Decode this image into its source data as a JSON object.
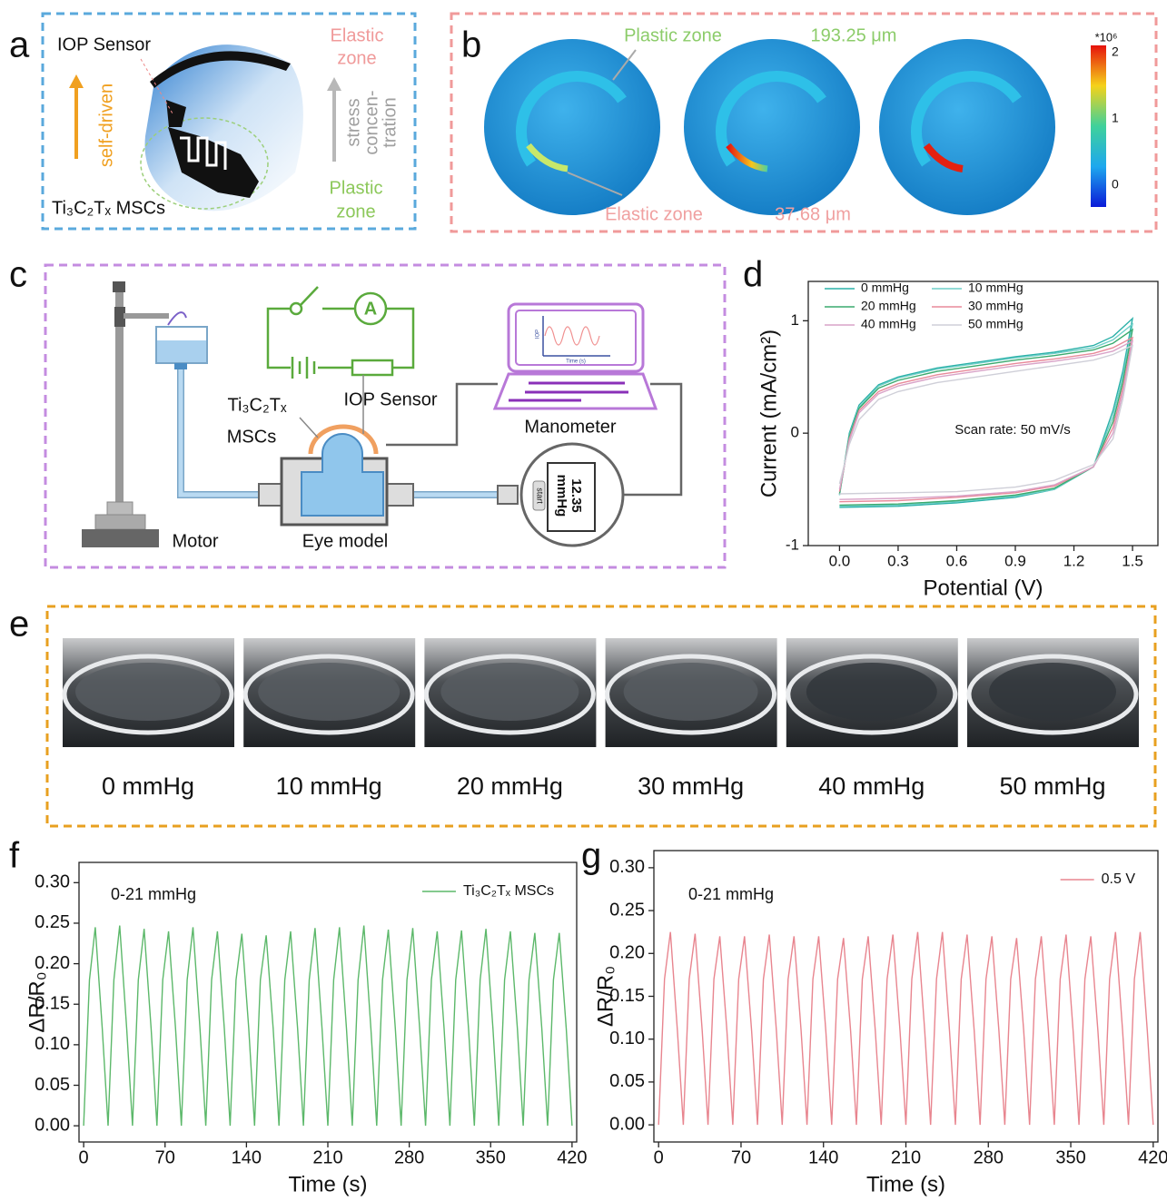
{
  "panel_letters": [
    "a",
    "b",
    "c",
    "d",
    "e",
    "f",
    "g"
  ],
  "panel_a": {
    "sensor": "IOP Sensor",
    "elastic": [
      "Elastic",
      "zone"
    ],
    "plastic": [
      "Plastic",
      "zone"
    ],
    "self_driven": "self-driven",
    "stress": [
      "stress",
      "concen-",
      "tration"
    ],
    "mscs": "Ti₃C₂Tₓ MSCs"
  },
  "panel_b": {
    "plastic_zone": "Plastic zone",
    "plastic_value": "193.25 μm",
    "elastic_zone": "Elastic zone",
    "elastic_value": "37.68 μm",
    "colorbar_unit": "*10⁶",
    "colorbar_ticks": [
      2,
      1,
      0
    ]
  },
  "panel_c": {
    "mscs": [
      "Ti₃C₂Tₓ",
      "MSCs"
    ],
    "sensor": "IOP Sensor",
    "manometer": "Manometer",
    "motor": "Motor",
    "eye": "Eye model",
    "reading": [
      "12.35",
      "mmHg"
    ],
    "start": "start",
    "ammeter": "A",
    "screen_y": "IOP",
    "screen_x": "Time (s)"
  },
  "panel_e": {
    "labels": [
      "0 mmHg",
      "10 mmHg",
      "20 mmHg",
      "30 mmHg",
      "40 mmHg",
      "50 mmHg"
    ]
  },
  "chart_data": [
    {
      "type": "line",
      "xlabel": "Potential (V)",
      "ylabel": "Current (mA/cm²)",
      "annotation": "Scan rate: 50 mV/s",
      "legend": "upper left",
      "xlim": [
        -0.16,
        1.63
      ],
      "ylim": [
        -1,
        1.35
      ],
      "xticks": [
        {
          "value": 0,
          "label": "0.0"
        },
        0.3,
        0.6,
        0.9,
        1.2,
        1.5
      ],
      "yticks": [
        -1,
        0,
        1
      ],
      "x": [
        0,
        0.05,
        0.1,
        0.2,
        0.3,
        0.5,
        0.7,
        0.9,
        1.1,
        1.3,
        1.4,
        1.5,
        1.45,
        1.4,
        1.3,
        1.1,
        0.9,
        0.6,
        0.3,
        0
      ],
      "series": [
        {
          "name": "0 mmHg",
          "color": "#2ab0a8",
          "values": [
            -0.55,
            0.0,
            0.25,
            0.43,
            0.5,
            0.58,
            0.63,
            0.68,
            0.72,
            0.78,
            0.86,
            1.02,
            0.55,
            0.2,
            -0.3,
            -0.5,
            -0.57,
            -0.62,
            -0.65,
            -0.66
          ]
        },
        {
          "name": "10 mmHg",
          "color": "#6fcfc8",
          "values": [
            -0.55,
            -0.02,
            0.23,
            0.42,
            0.49,
            0.57,
            0.62,
            0.67,
            0.71,
            0.76,
            0.83,
            0.97,
            0.5,
            0.15,
            -0.3,
            -0.5,
            -0.56,
            -0.61,
            -0.64,
            -0.65
          ]
        },
        {
          "name": "20 mmHg",
          "color": "#3aaa6e",
          "values": [
            -0.54,
            -0.03,
            0.22,
            0.4,
            0.47,
            0.55,
            0.6,
            0.65,
            0.69,
            0.74,
            0.8,
            0.92,
            0.45,
            0.1,
            -0.3,
            -0.49,
            -0.55,
            -0.6,
            -0.63,
            -0.64
          ]
        },
        {
          "name": "30 mmHg",
          "color": "#e88a9a",
          "values": [
            -0.52,
            -0.05,
            0.2,
            0.37,
            0.44,
            0.52,
            0.57,
            0.62,
            0.66,
            0.71,
            0.76,
            0.85,
            0.4,
            0.05,
            -0.3,
            -0.47,
            -0.53,
            -0.57,
            -0.6,
            -0.61
          ]
        },
        {
          "name": "40 mmHg",
          "color": "#d9a3c8",
          "values": [
            -0.5,
            -0.07,
            0.18,
            0.35,
            0.42,
            0.5,
            0.55,
            0.6,
            0.64,
            0.69,
            0.73,
            0.82,
            0.35,
            0.0,
            -0.3,
            -0.46,
            -0.52,
            -0.56,
            -0.58,
            -0.59
          ]
        },
        {
          "name": "50 mmHg",
          "color": "#cfcfd8",
          "values": [
            -0.45,
            -0.1,
            0.12,
            0.3,
            0.37,
            0.45,
            0.5,
            0.55,
            0.6,
            0.65,
            0.7,
            0.78,
            0.3,
            -0.05,
            -0.28,
            -0.42,
            -0.48,
            -0.52,
            -0.53,
            -0.54
          ]
        }
      ]
    },
    {
      "type": "line",
      "xlabel": "Time (s)",
      "ylabel": "ΔR/R₀",
      "annotation": "0-21 mmHg",
      "legend": "upper right",
      "xlim": [
        -4,
        424
      ],
      "ylim": [
        -0.02,
        0.325
      ],
      "xticks": [
        0,
        70,
        140,
        210,
        280,
        350,
        420
      ],
      "yticks": [
        {
          "value": 0,
          "label": "0.00"
        },
        0.05,
        {
          "value": 0.1,
          "label": "0.10"
        },
        0.15,
        {
          "value": 0.2,
          "label": "0.20"
        },
        0.25,
        {
          "value": 0.3,
          "label": "0.30"
        }
      ],
      "x": [
        0,
        5,
        10,
        16,
        21,
        26,
        31,
        37,
        42,
        47,
        52,
        58,
        63,
        68,
        73,
        79,
        84,
        89,
        94,
        100,
        105,
        110,
        115,
        121,
        126,
        131,
        136,
        142,
        147,
        152,
        157,
        163,
        168,
        173,
        178,
        184,
        189,
        194,
        199,
        205,
        210,
        215,
        220,
        226,
        231,
        236,
        241,
        247,
        252,
        257,
        262,
        268,
        273,
        278,
        283,
        289,
        294,
        299,
        304,
        310,
        315,
        320,
        325,
        331,
        336,
        341,
        346,
        352,
        357,
        362,
        367,
        373,
        378,
        383,
        388,
        394,
        399,
        404,
        409,
        415,
        420
      ],
      "series": [
        {
          "name": "Ti₃C₂Tₓ MSCs",
          "color": "#5cb86a",
          "values": [
            0,
            0.18,
            0.245,
            0.12,
            0,
            0.18,
            0.247,
            0.12,
            0,
            0.18,
            0.243,
            0.12,
            0,
            0.18,
            0.24,
            0.12,
            0,
            0.18,
            0.245,
            0.12,
            0,
            0.18,
            0.24,
            0.12,
            0,
            0.18,
            0.237,
            0.12,
            0,
            0.18,
            0.235,
            0.12,
            0,
            0.18,
            0.24,
            0.12,
            0,
            0.18,
            0.244,
            0.12,
            0,
            0.18,
            0.245,
            0.12,
            0,
            0.18,
            0.247,
            0.12,
            0,
            0.18,
            0.242,
            0.12,
            0,
            0.18,
            0.244,
            0.12,
            0,
            0.18,
            0.24,
            0.12,
            0,
            0.18,
            0.241,
            0.12,
            0,
            0.18,
            0.243,
            0.12,
            0,
            0.18,
            0.24,
            0.12,
            0,
            0.18,
            0.238,
            0.12,
            0,
            0.18,
            0.238,
            0.12,
            0
          ]
        }
      ]
    },
    {
      "type": "line",
      "xlabel": "Time (s)",
      "ylabel": "ΔR/R₀",
      "annotation": "0-21 mmHg",
      "legend": "upper right",
      "xlim": [
        -4,
        424
      ],
      "ylim": [
        -0.02,
        0.32
      ],
      "xticks": [
        0,
        70,
        140,
        210,
        280,
        350,
        420
      ],
      "yticks": [
        {
          "value": 0,
          "label": "0.00"
        },
        0.05,
        {
          "value": 0.1,
          "label": "0.10"
        },
        0.15,
        {
          "value": 0.2,
          "label": "0.20"
        },
        0.25,
        {
          "value": 0.3,
          "label": "0.30"
        }
      ],
      "x": [
        0,
        5,
        10,
        16,
        21,
        26,
        31,
        37,
        42,
        47,
        52,
        58,
        63,
        68,
        73,
        79,
        84,
        89,
        94,
        100,
        105,
        110,
        115,
        121,
        126,
        131,
        136,
        142,
        147,
        152,
        157,
        163,
        168,
        173,
        178,
        184,
        189,
        194,
        199,
        205,
        210,
        215,
        220,
        226,
        231,
        236,
        241,
        247,
        252,
        257,
        262,
        268,
        273,
        278,
        283,
        289,
        294,
        299,
        304,
        310,
        315,
        320,
        325,
        331,
        336,
        341,
        346,
        352,
        357,
        362,
        367,
        373,
        378,
        383,
        388,
        394,
        399,
        404,
        409,
        415,
        420
      ],
      "series": [
        {
          "name": "0.5 V",
          "color": "#e8858f",
          "values": [
            0,
            0.17,
            0.225,
            0.11,
            0,
            0.17,
            0.223,
            0.11,
            0,
            0.17,
            0.22,
            0.11,
            0,
            0.17,
            0.22,
            0.11,
            0,
            0.17,
            0.222,
            0.11,
            0,
            0.17,
            0.22,
            0.11,
            0,
            0.17,
            0.22,
            0.11,
            0,
            0.17,
            0.218,
            0.11,
            0,
            0.17,
            0.22,
            0.11,
            0,
            0.17,
            0.222,
            0.11,
            0,
            0.17,
            0.225,
            0.11,
            0,
            0.17,
            0.225,
            0.11,
            0,
            0.17,
            0.222,
            0.11,
            0,
            0.17,
            0.22,
            0.11,
            0,
            0.17,
            0.218,
            0.11,
            0,
            0.17,
            0.22,
            0.11,
            0,
            0.17,
            0.222,
            0.11,
            0,
            0.17,
            0.22,
            0.11,
            0,
            0.17,
            0.225,
            0.11,
            0,
            0.17,
            0.225,
            0.11,
            0
          ]
        }
      ]
    }
  ]
}
